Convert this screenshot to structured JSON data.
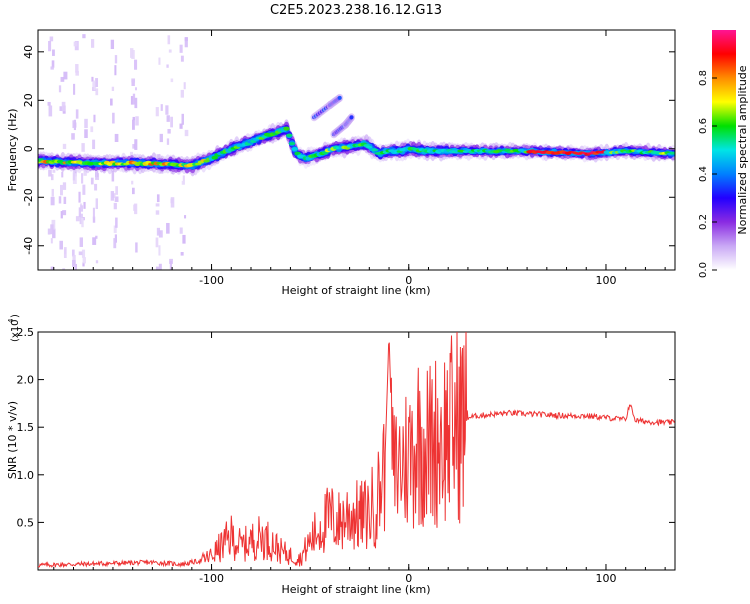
{
  "title": "C2E5.2023.238.16.12.G13",
  "colors": {
    "snr_line": "#ee3333",
    "axis": "#000000",
    "background": "#ffffff",
    "colormap": [
      "#ffffff",
      "#c9a8f5",
      "#8a2be2",
      "#2200ff",
      "#0080ff",
      "#00e5e5",
      "#00e000",
      "#ffff00",
      "#ff8c00",
      "#ff0000",
      "#ff1493"
    ]
  },
  "chart_data": [
    {
      "type": "heatmap",
      "xlabel": "Height of straight line (km)",
      "ylabel": "Frequency (Hz)",
      "xlim": [
        -188,
        135
      ],
      "ylim": [
        -50,
        49
      ],
      "x_ticks": [
        -100,
        0,
        100
      ],
      "x_tick_labels": [
        "-100",
        "0",
        "100"
      ],
      "y_ticks": [
        -40,
        -20,
        0,
        20,
        40
      ],
      "y_tick_labels": [
        "-40",
        "-20",
        "0",
        "20",
        "40"
      ],
      "grid": false,
      "legend": "none",
      "ridge": {
        "x": [
          -188,
          -160,
          -130,
          -110,
          -100,
          -90,
          -80,
          -70,
          -62,
          -57,
          -52,
          -45,
          -38,
          -30,
          -22,
          -15,
          -10,
          -5,
          0,
          10,
          30,
          60,
          90,
          110,
          135
        ],
        "y": [
          -5,
          -6,
          -6,
          -7,
          -4,
          0,
          3,
          6,
          8,
          -2,
          -4,
          -2,
          0,
          1,
          2,
          -2,
          -1,
          -1,
          0,
          -1,
          -1,
          -1,
          -2,
          -1,
          -2
        ]
      },
      "branches": [
        {
          "x": [
            -48,
            -40,
            -35
          ],
          "y": [
            13,
            18,
            21
          ]
        },
        {
          "x": [
            -38,
            -32,
            -29
          ],
          "y": [
            6,
            10,
            13
          ]
        }
      ],
      "colorbar": {
        "label": "Normalized spectral amplitude",
        "ticks": [
          0.0,
          0.2,
          0.4,
          0.6,
          0.8
        ],
        "tick_labels": [
          "0.0",
          "0.2",
          "0.4",
          "0.6",
          "0.8"
        ],
        "range": [
          0,
          1
        ]
      }
    },
    {
      "type": "line",
      "xlabel": "Height of straight line (km)",
      "ylabel": "SNR (10 * v/v)",
      "y_scale_label": "(x10",
      "y_scale_exp": "4",
      "y_scale_close": ")",
      "xlim": [
        -188,
        135
      ],
      "ylim": [
        0,
        2.5
      ],
      "x_ticks": [
        -100,
        0,
        100
      ],
      "x_tick_labels": [
        "-100",
        "0",
        "100"
      ],
      "y_ticks": [
        0.5,
        1.0,
        1.5,
        2.0,
        2.5
      ],
      "y_tick_labels": [
        "0.5",
        "1.0",
        "1.5",
        "2.0",
        "2.5"
      ],
      "grid": false,
      "legend": "none",
      "series": [
        {
          "x": [
            -188,
            -170,
            -150,
            -130,
            -115,
            -105,
            -100,
            -95,
            -90,
            -85,
            -80,
            -75,
            -70,
            -65,
            -60,
            -55,
            -50,
            -45,
            -40,
            -35,
            -30,
            -25,
            -20,
            -15,
            -12,
            -10,
            -8,
            -5,
            0,
            5,
            10,
            15,
            20,
            25,
            30,
            35,
            40,
            50,
            60,
            70,
            80,
            90,
            100,
            110,
            112,
            115,
            120,
            130,
            135
          ],
          "y": [
            0.05,
            0.06,
            0.07,
            0.08,
            0.06,
            0.1,
            0.15,
            0.25,
            0.35,
            0.25,
            0.3,
            0.35,
            0.3,
            0.2,
            0.15,
            0.12,
            0.3,
            0.45,
            0.55,
            0.5,
            0.6,
            0.55,
            0.6,
            0.8,
            1.2,
            2.5,
            1.0,
            1.1,
            1.2,
            1.4,
            1.3,
            1.4,
            1.45,
            1.55,
            1.6,
            1.62,
            1.63,
            1.65,
            1.64,
            1.63,
            1.62,
            1.62,
            1.6,
            1.58,
            1.75,
            1.57,
            1.56,
            1.55,
            1.55
          ]
        }
      ]
    }
  ]
}
